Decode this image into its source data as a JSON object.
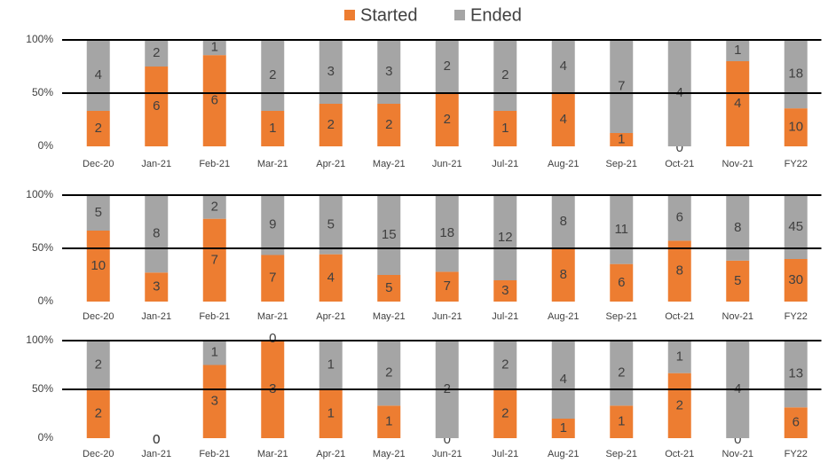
{
  "legend": [
    {
      "name": "Started",
      "color": "#ed7d31"
    },
    {
      "name": "Ended",
      "color": "#a5a5a5"
    }
  ],
  "chart_data": [
    {
      "type": "bar",
      "stacking": "percent",
      "grid": true,
      "categories": [
        "Dec-20",
        "Jan-21",
        "Feb-21",
        "Mar-21",
        "Apr-21",
        "May-21",
        "Jun-21",
        "Jul-21",
        "Aug-21",
        "Sep-21",
        "Oct-21",
        "Nov-21",
        "FY22"
      ],
      "series": [
        {
          "values": [
            2,
            6,
            6,
            1,
            2,
            2,
            2,
            1,
            4,
            1,
            0,
            4,
            10
          ]
        },
        {
          "values": [
            4,
            2,
            1,
            2,
            3,
            3,
            2,
            2,
            4,
            7,
            4,
            1,
            18
          ]
        }
      ],
      "ylim": [
        0,
        100
      ],
      "yticks": [
        {
          "value": 0,
          "label": "0%"
        },
        {
          "value": 50,
          "label": "50%"
        },
        {
          "value": 100,
          "label": "100%"
        }
      ]
    },
    {
      "type": "bar",
      "stacking": "percent",
      "grid": true,
      "categories": [
        "Dec-20",
        "Jan-21",
        "Feb-21",
        "Mar-21",
        "Apr-21",
        "May-21",
        "Jun-21",
        "Jul-21",
        "Aug-21",
        "Sep-21",
        "Oct-21",
        "Nov-21",
        "FY22"
      ],
      "series": [
        {
          "values": [
            10,
            3,
            7,
            7,
            4,
            5,
            7,
            3,
            8,
            6,
            8,
            5,
            30
          ]
        },
        {
          "values": [
            5,
            8,
            2,
            9,
            5,
            15,
            18,
            12,
            8,
            11,
            6,
            8,
            45
          ]
        }
      ],
      "ylim": [
        0,
        100
      ],
      "yticks": [
        {
          "value": 0,
          "label": "0%"
        },
        {
          "value": 50,
          "label": "50%"
        },
        {
          "value": 100,
          "label": "100%"
        }
      ]
    },
    {
      "type": "bar",
      "stacking": "percent",
      "grid": true,
      "categories": [
        "Dec-20",
        "Jan-21",
        "Feb-21",
        "Mar-21",
        "Apr-21",
        "May-21",
        "Jun-21",
        "Jul-21",
        "Aug-21",
        "Sep-21",
        "Oct-21",
        "Nov-21",
        "FY22"
      ],
      "series": [
        {
          "values": [
            2,
            0,
            3,
            3,
            1,
            1,
            0,
            2,
            1,
            1,
            2,
            0,
            6
          ]
        },
        {
          "values": [
            2,
            0,
            1,
            0,
            1,
            2,
            2,
            2,
            4,
            2,
            1,
            4,
            13
          ]
        }
      ],
      "ylim": [
        0,
        100
      ],
      "yticks": [
        {
          "value": 0,
          "label": "0%"
        },
        {
          "value": 50,
          "label": "50%"
        },
        {
          "value": 100,
          "label": "100%"
        }
      ]
    }
  ]
}
